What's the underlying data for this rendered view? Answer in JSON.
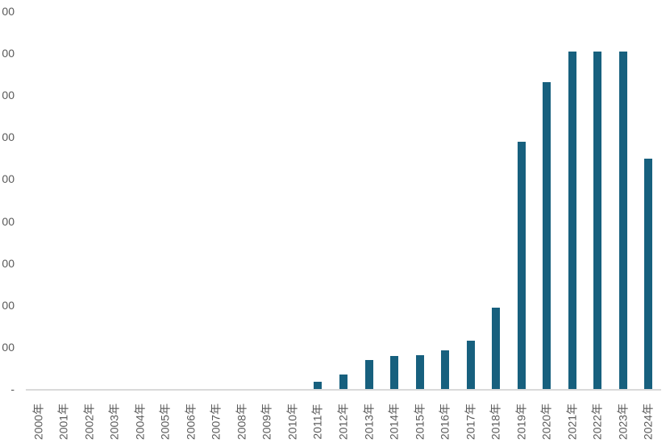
{
  "chart_data": {
    "type": "bar",
    "title": "",
    "xlabel": "",
    "ylabel": "",
    "categories": [
      "2000年",
      "2001年",
      "2002年",
      "2003年",
      "2004年",
      "2005年",
      "2006年",
      "2007年",
      "2008年",
      "2009年",
      "2010年",
      "2011年",
      "2012年",
      "2013年",
      "2014年",
      "2015年",
      "2016年",
      "2017年",
      "2018年",
      "2019年",
      "2020年",
      "2021年",
      "2022年",
      "2023年",
      "2024年"
    ],
    "values": [
      0,
      0,
      0,
      0,
      0,
      0,
      0,
      0,
      0,
      0,
      0,
      85,
      175,
      350,
      395,
      405,
      460,
      575,
      970,
      2950,
      3660,
      4025,
      4025,
      4025,
      2740
    ],
    "ylim": [
      0,
      4500
    ],
    "y_tick_step": 500,
    "y_tick_labels_visible_top_to_bottom": [
      "00",
      "00",
      "00",
      "00",
      "00",
      "00",
      "00",
      "00",
      "00"
    ],
    "y_zero_label": "-",
    "grid": false,
    "legend_position": "none"
  },
  "style": {
    "bar_color": "#17607E",
    "axis_line_color": "#D9D9D9",
    "tick_label_color": "#595959",
    "background": "#FFFFFF"
  }
}
